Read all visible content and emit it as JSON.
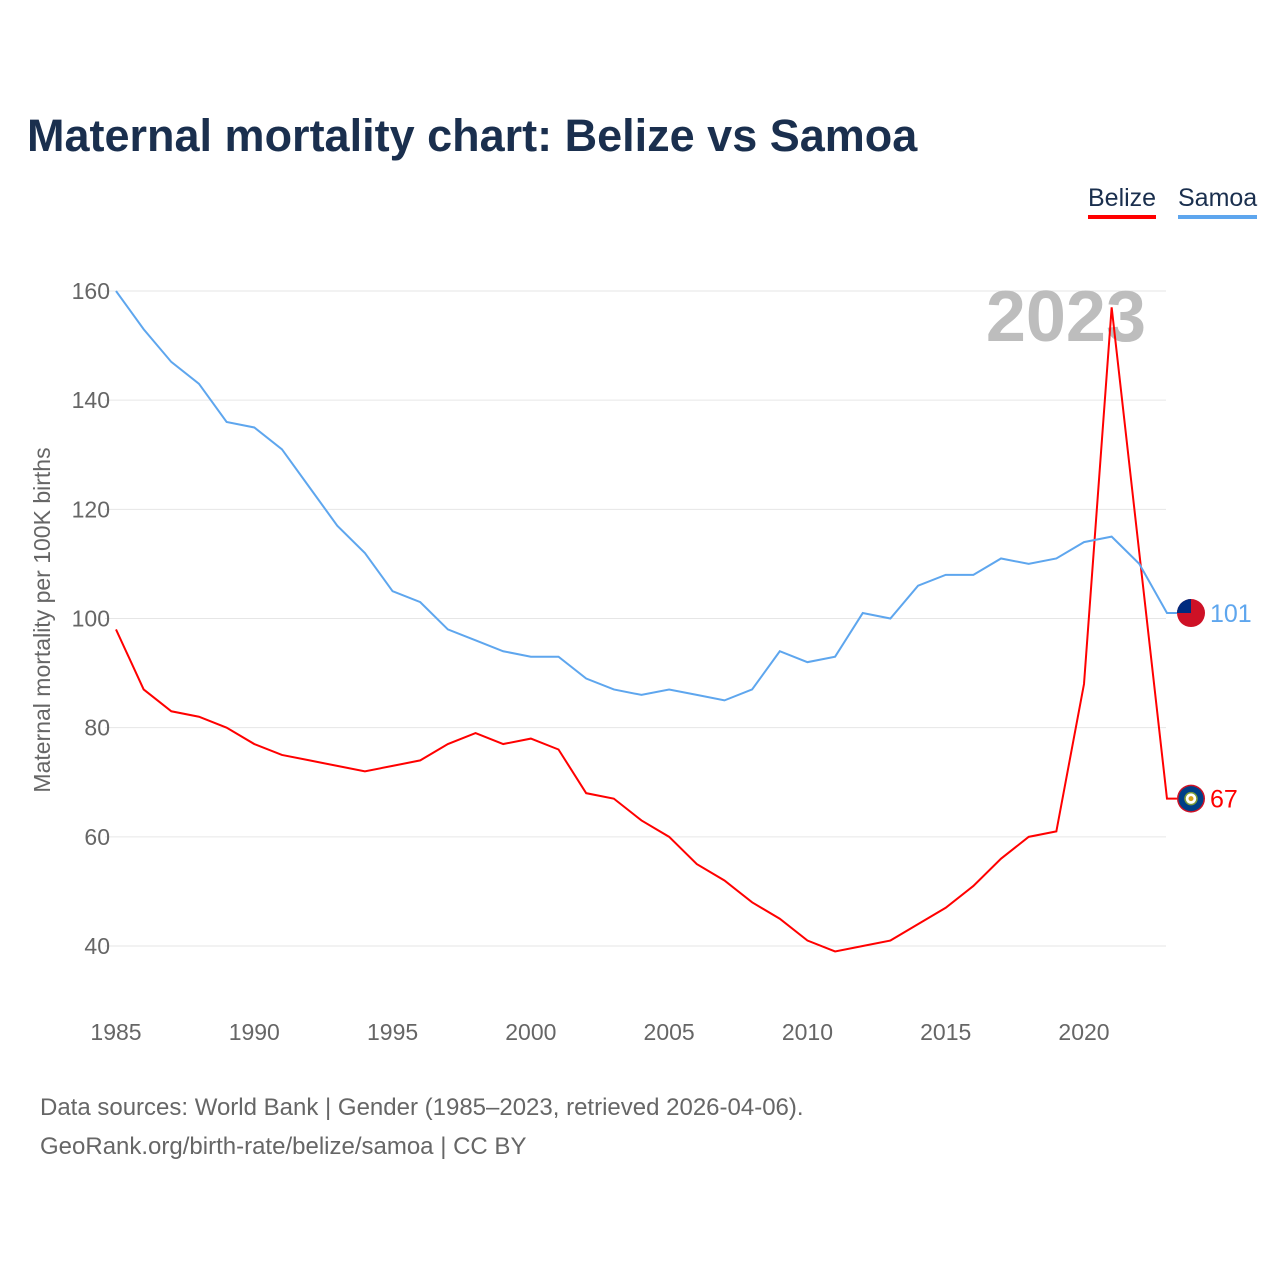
{
  "title": "Maternal mortality chart: Belize vs Samoa",
  "legend": [
    {
      "name": "Belize",
      "color": "#ff0000"
    },
    {
      "name": "Samoa",
      "color": "#5ea6ee"
    }
  ],
  "year_watermark": "2023",
  "footer": {
    "line1": "Data sources: World Bank | Gender (1985–2023, retrieved 2026-04-06).",
    "line2": "GeoRank.org/birth-rate/belize/samoa | CC BY"
  },
  "chart_data": {
    "type": "line",
    "title": "Maternal mortality chart: Belize vs Samoa",
    "xlabel": "",
    "ylabel": "Maternal mortality per 100K births",
    "xlim": [
      1985,
      2023
    ],
    "ylim": [
      30,
      165
    ],
    "yticks": [
      40,
      60,
      80,
      100,
      120,
      140,
      160
    ],
    "xticks": [
      1985,
      1990,
      1995,
      2000,
      2005,
      2010,
      2015,
      2020
    ],
    "grid": true,
    "legend_position": "top-right",
    "x": [
      1985,
      1986,
      1987,
      1988,
      1989,
      1990,
      1991,
      1992,
      1993,
      1994,
      1995,
      1996,
      1997,
      1998,
      1999,
      2000,
      2001,
      2002,
      2003,
      2004,
      2005,
      2006,
      2007,
      2008,
      2009,
      2010,
      2011,
      2012,
      2013,
      2014,
      2015,
      2016,
      2017,
      2018,
      2019,
      2020,
      2021,
      2022,
      2023
    ],
    "series": [
      {
        "name": "Belize",
        "color": "#ff0000",
        "end_label": "67",
        "values": [
          98,
          87,
          83,
          82,
          80,
          77,
          75,
          74,
          73,
          72,
          73,
          74,
          77,
          79,
          77,
          78,
          76,
          68,
          67,
          63,
          60,
          55,
          52,
          48,
          45,
          41,
          39,
          40,
          41,
          44,
          47,
          51,
          56,
          60,
          61,
          88,
          157,
          112,
          67
        ]
      },
      {
        "name": "Samoa",
        "color": "#5ea6ee",
        "end_label": "101",
        "values": [
          160,
          153,
          147,
          143,
          136,
          135,
          131,
          124,
          117,
          112,
          105,
          103,
          98,
          96,
          94,
          93,
          93,
          89,
          87,
          86,
          87,
          86,
          85,
          87,
          94,
          92,
          93,
          101,
          100,
          106,
          108,
          108,
          111,
          110,
          111,
          114,
          115,
          110,
          101
        ]
      }
    ]
  }
}
